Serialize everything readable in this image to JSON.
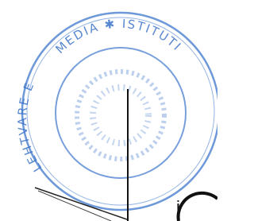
{
  "stamp": {
    "top_text": "MEDIA ✱ ISTITUTI",
    "left_text": "LEHTVARE E",
    "corner_text": "i"
  }
}
